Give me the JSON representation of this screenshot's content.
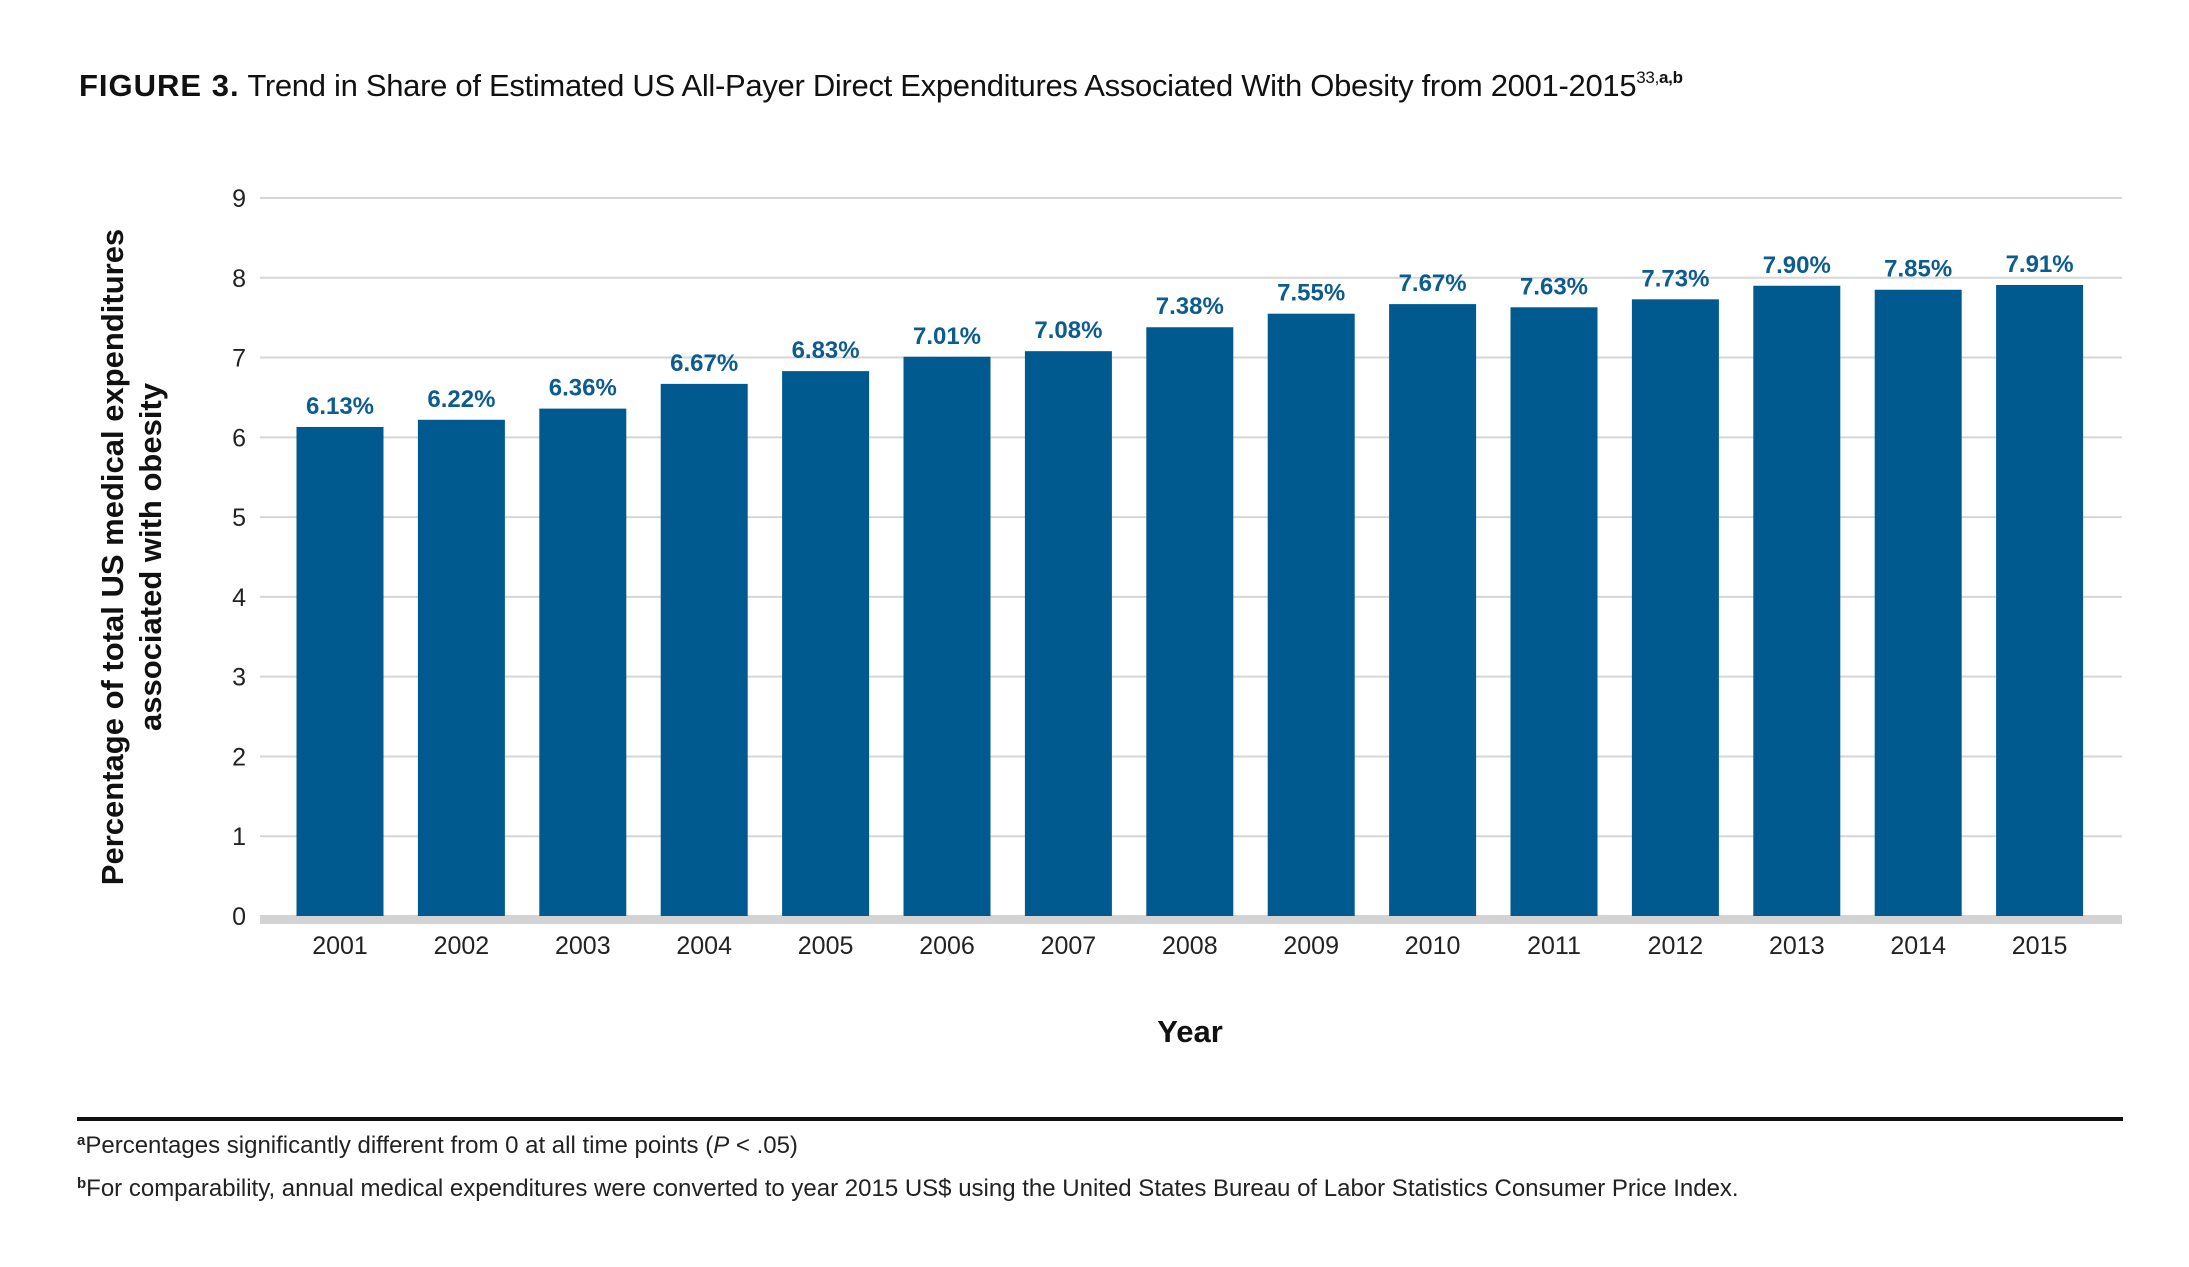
{
  "figure": {
    "label": "FIGURE 3.",
    "title": "Trend in Share of Estimated US All-Payer Direct Expenditures Associated With Obesity from 2001-2015",
    "superscript_ref": "33,",
    "superscript_notes": "a,b"
  },
  "chart_data": {
    "type": "bar",
    "title": "Trend in Share of Estimated US All-Payer Direct Expenditures Associated With Obesity from 2001-2015",
    "xlabel": "Year",
    "ylabel_line1": "Percentage of total US medical expenditures",
    "ylabel_line2": "associated with obesity",
    "ylabel": "Percentage of total US medical expenditures associated with obesity",
    "categories": [
      "2001",
      "2002",
      "2003",
      "2004",
      "2005",
      "2006",
      "2007",
      "2008",
      "2009",
      "2010",
      "2011",
      "2012",
      "2013",
      "2014",
      "2015"
    ],
    "values": [
      6.13,
      6.22,
      6.36,
      6.67,
      6.83,
      7.01,
      7.08,
      7.38,
      7.55,
      7.67,
      7.63,
      7.73,
      7.9,
      7.85,
      7.91
    ],
    "data_labels": [
      "6.13%",
      "6.22%",
      "6.36%",
      "6.67%",
      "6.83%",
      "7.01%",
      "7.08%",
      "7.38%",
      "7.55%",
      "7.67%",
      "7.63%",
      "7.73%",
      "7.90%",
      "7.85%",
      "7.91%"
    ],
    "ylim": [
      0,
      9
    ],
    "yticks": [
      "0",
      "1",
      "2",
      "3",
      "4",
      "5",
      "6",
      "7",
      "8",
      "9"
    ],
    "grid": true,
    "legend": "none",
    "colors": {
      "bar": "#005A8F",
      "label": "#0D5C8F",
      "grid": "#D6D6D6",
      "baseline": "#D3D3D3"
    }
  },
  "footnotes": {
    "a_marker": "a",
    "a_text_before": "Percentages significantly different from 0 at all time points (",
    "a_italic": "P",
    "a_text_after": " < .05)",
    "b_marker": "b",
    "b_text": "For comparability, annual medical expenditures were converted to year 2015 US$ using the United States Bureau of Labor Statistics Consumer Price Index."
  }
}
